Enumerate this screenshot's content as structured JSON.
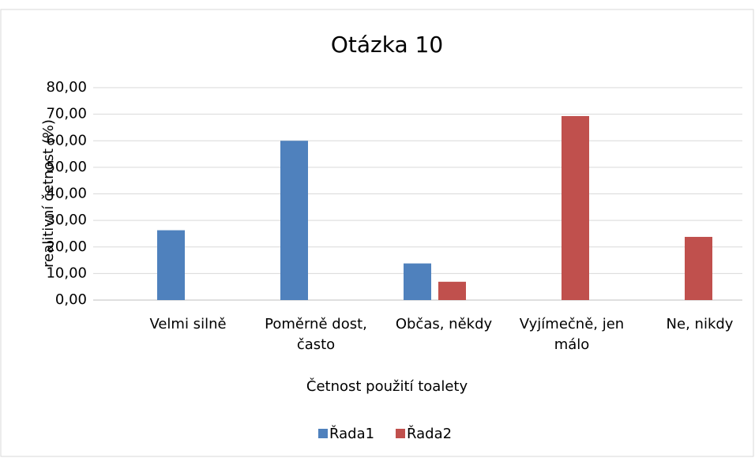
{
  "chart_data": {
    "type": "bar",
    "title": "Otázka 10",
    "x_label": "Četnost použití toalety",
    "y_label": "realitivní četnost (%)",
    "categories": [
      "Velmi silně",
      "Poměrně dost, často",
      "Občas, někdy",
      "Vyjímečně, jen málo",
      "Ne, nikdy"
    ],
    "series": [
      {
        "name": "Řada1",
        "color": "#4f81bd",
        "values": [
          26.3,
          60.0,
          13.8,
          null,
          null
        ]
      },
      {
        "name": "Řada2",
        "color": "#c0504d",
        "values": [
          null,
          null,
          6.9,
          69.3,
          23.8
        ]
      }
    ],
    "ylim": [
      0,
      80
    ],
    "yticks": [
      {
        "value": 0,
        "label": "0,00"
      },
      {
        "value": 10,
        "label": "10,00"
      },
      {
        "value": 20,
        "label": "20,00"
      },
      {
        "value": 30,
        "label": "30,00"
      },
      {
        "value": 40,
        "label": "40,00"
      },
      {
        "value": 50,
        "label": "50,00"
      },
      {
        "value": 60,
        "label": "60,00"
      },
      {
        "value": 70,
        "label": "70,00"
      },
      {
        "value": 80,
        "label": "80,00"
      }
    ],
    "grid": true,
    "legend": "bottom"
  }
}
